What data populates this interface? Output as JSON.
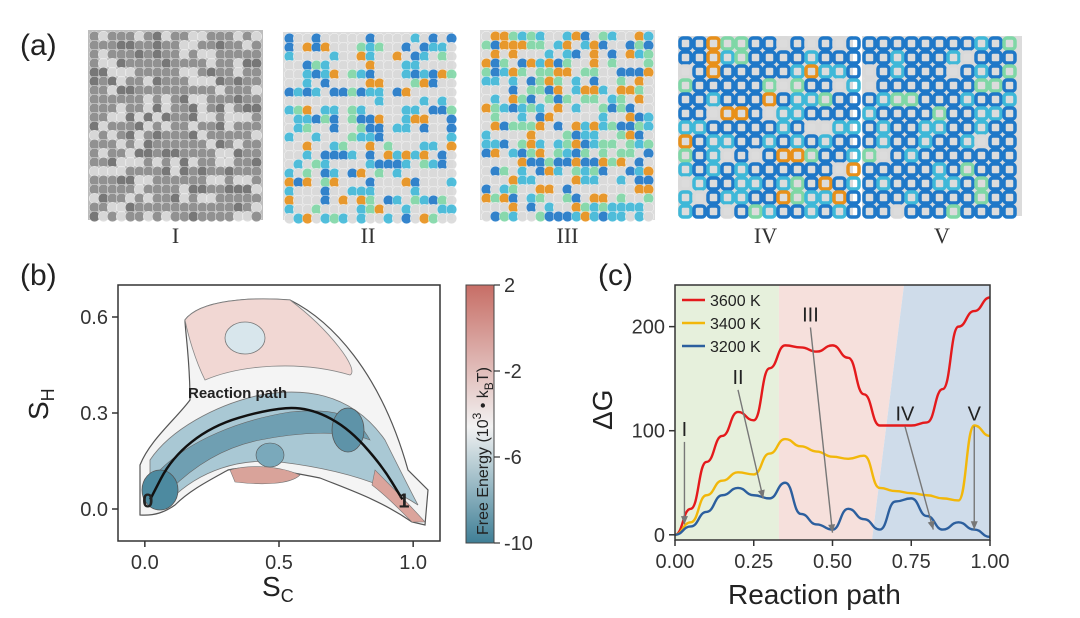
{
  "panel_a": {
    "label": "(a)",
    "snapshots": [
      {
        "label": "I",
        "style": "disordered"
      },
      {
        "label": "II",
        "style": "mixed-low"
      },
      {
        "label": "III",
        "style": "mixed-high"
      },
      {
        "label": "IV",
        "style": "partially-crystalline"
      },
      {
        "label": "V",
        "style": "crystalline"
      }
    ],
    "colors": {
      "gray": "#8c8c8c",
      "light": "#d9d9d9",
      "blue": "#1f78c8",
      "cyan": "#3fb8d8",
      "green": "#7fd7a6",
      "orange": "#e8901a"
    }
  },
  "panel_b": {
    "label": "(b)",
    "chart_data": {
      "type": "heatmap",
      "title": "",
      "xlabel": "S",
      "xlabel_sub": "C",
      "ylabel": "S",
      "ylabel_sub": "H",
      "xlim": [
        -0.1,
        1.1
      ],
      "ylim": [
        -0.1,
        0.7
      ],
      "xticks": [
        "0.0",
        "0.5",
        "1.0"
      ],
      "xtick_values": [
        0.0,
        0.5,
        1.0
      ],
      "yticks": [
        "0.0",
        "0.3",
        "0.6"
      ],
      "ytick_values": [
        0.0,
        0.3,
        0.6
      ],
      "annotation": "Reaction path",
      "path_start_label": "0",
      "path_end_label": "1",
      "path_points": [
        [
          0.02,
          0.03
        ],
        [
          0.1,
          0.16
        ],
        [
          0.25,
          0.26
        ],
        [
          0.45,
          0.31
        ],
        [
          0.6,
          0.32
        ],
        [
          0.75,
          0.26
        ],
        [
          0.88,
          0.14
        ],
        [
          0.96,
          0.03
        ]
      ],
      "colorbar": {
        "label": "Free Energy (10",
        "label_sup": "3",
        "label_mid": " • k",
        "label_sub": "B",
        "label_end": "T)",
        "ticks": [
          "2",
          "-2",
          "-6",
          "-10"
        ],
        "tick_values": [
          2,
          -2,
          -6,
          -10
        ],
        "range": [
          -10,
          2
        ],
        "color_high": "#c76e66",
        "color_mid": "#f2f2f2",
        "color_low": "#3f7f96"
      }
    }
  },
  "panel_c": {
    "label": "(c)",
    "chart_data": {
      "type": "line",
      "xlabel": "Reaction path",
      "ylabel": "ΔG",
      "xlim": [
        0,
        1
      ],
      "ylim": [
        -5,
        240
      ],
      "xticks": [
        "0.00",
        "0.25",
        "0.50",
        "0.75",
        "1.00"
      ],
      "xtick_values": [
        0,
        0.25,
        0.5,
        0.75,
        1.0
      ],
      "yticks": [
        "0",
        "100",
        "200"
      ],
      "ytick_values": [
        0,
        100,
        200
      ],
      "x": [
        0,
        0.05,
        0.1,
        0.15,
        0.2,
        0.25,
        0.3,
        0.35,
        0.4,
        0.45,
        0.5,
        0.55,
        0.6,
        0.65,
        0.7,
        0.75,
        0.8,
        0.85,
        0.9,
        0.95,
        1.0
      ],
      "series": [
        {
          "name": "3600 K",
          "color": "#e41a1c",
          "values": [
            0,
            25,
            70,
            95,
            118,
            110,
            160,
            182,
            180,
            176,
            182,
            170,
            135,
            105,
            105,
            105,
            108,
            140,
            200,
            215,
            228
          ]
        },
        {
          "name": "3400 K",
          "color": "#f2b70a",
          "values": [
            0,
            12,
            38,
            52,
            60,
            58,
            78,
            92,
            85,
            80,
            75,
            73,
            76,
            45,
            42,
            40,
            38,
            35,
            33,
            105,
            95
          ]
        },
        {
          "name": "3200 K",
          "color": "#2c5f9e",
          "values": [
            0,
            8,
            22,
            38,
            45,
            38,
            35,
            50,
            20,
            10,
            5,
            25,
            15,
            5,
            32,
            35,
            18,
            5,
            12,
            5,
            -2
          ]
        }
      ],
      "regions": [
        {
          "from": 0.0,
          "to": 0.33,
          "color": "#e6f0dc"
        },
        {
          "from": 0.33,
          "to": 0.6,
          "color": "#f6e0dc"
        },
        {
          "from": 0.6,
          "to": 1.0,
          "color": "#cfdcea"
        }
      ],
      "annotations": [
        {
          "text": "I",
          "x": 0.03,
          "y": 95,
          "tx": 0.03,
          "ty": 10
        },
        {
          "text": "II",
          "x": 0.2,
          "y": 145,
          "tx": 0.28,
          "ty": 35
        },
        {
          "text": "III",
          "x": 0.43,
          "y": 205,
          "tx": 0.5,
          "ty": 2
        },
        {
          "text": "IV",
          "x": 0.73,
          "y": 110,
          "tx": 0.82,
          "ty": 5
        },
        {
          "text": "V",
          "x": 0.95,
          "y": 110,
          "tx": 0.95,
          "ty": 5
        }
      ],
      "legend_position": "top-left"
    }
  }
}
